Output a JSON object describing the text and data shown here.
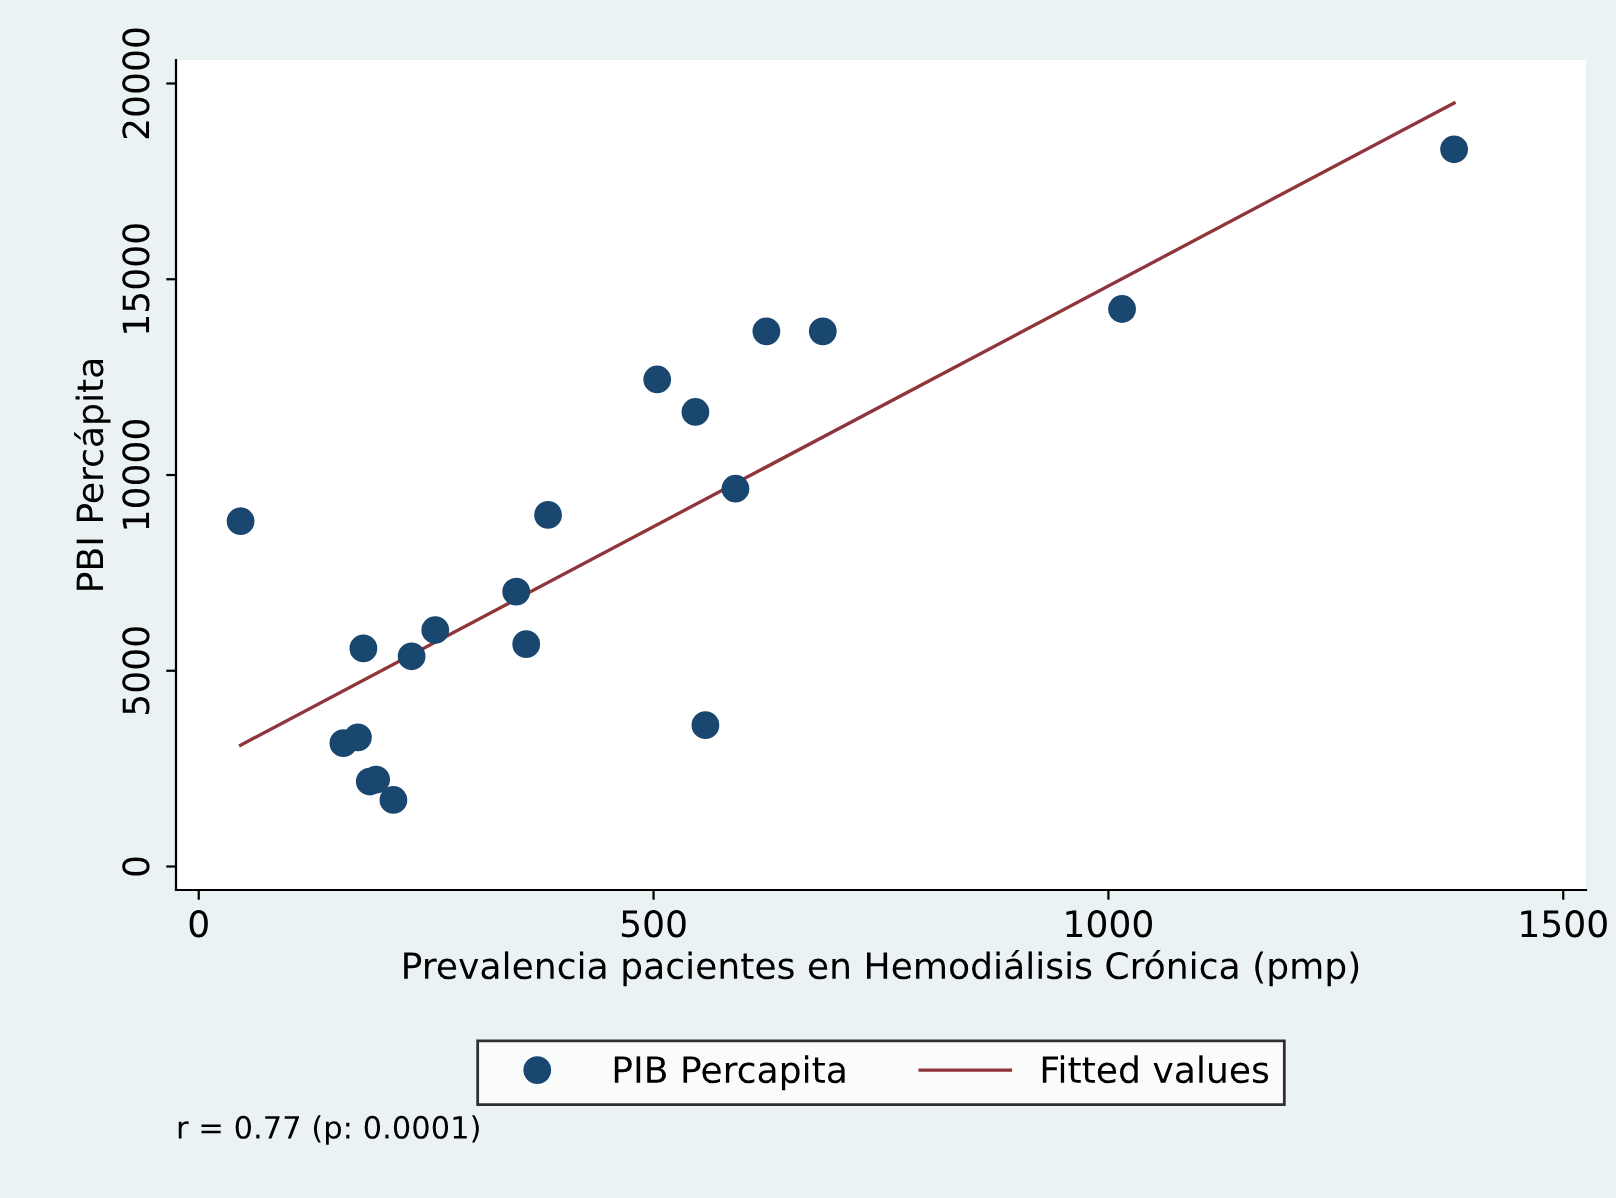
{
  "chart_data": {
    "type": "scatter",
    "xlabel": "Prevalencia pacientes en Hemodiálisis Crónica (pmp)",
    "ylabel": "PBI Percápita",
    "series": [
      {
        "name": "PIB Percapita",
        "color": "#1a476f",
        "marker": "circle",
        "x": [
          46,
          159,
          175,
          181,
          188,
          195,
          214,
          234,
          260,
          349,
          360,
          384,
          504,
          546,
          557,
          590,
          624,
          686,
          1015,
          1380
        ],
        "values": [
          8820,
          3150,
          3300,
          5570,
          2170,
          2220,
          1700,
          5370,
          6040,
          7020,
          5680,
          8980,
          12440,
          11610,
          3610,
          9650,
          13670,
          13670,
          14240,
          18320
        ]
      },
      {
        "name": "Fitted values",
        "type": "line",
        "color": "#90353b",
        "marker": "none",
        "x": [
          46,
          1380
        ],
        "values": [
          3100,
          19500
        ]
      }
    ],
    "xlim": [
      -25,
      1525
    ],
    "xticks": [
      0,
      500,
      1000,
      1500
    ],
    "ylim": [
      -600,
      20600
    ],
    "yticks": [
      0,
      5000,
      10000,
      15000,
      20000
    ],
    "grid": false,
    "legend": "bottom",
    "annotations": [
      "r = 0.77 (p: 0.0001)"
    ]
  }
}
